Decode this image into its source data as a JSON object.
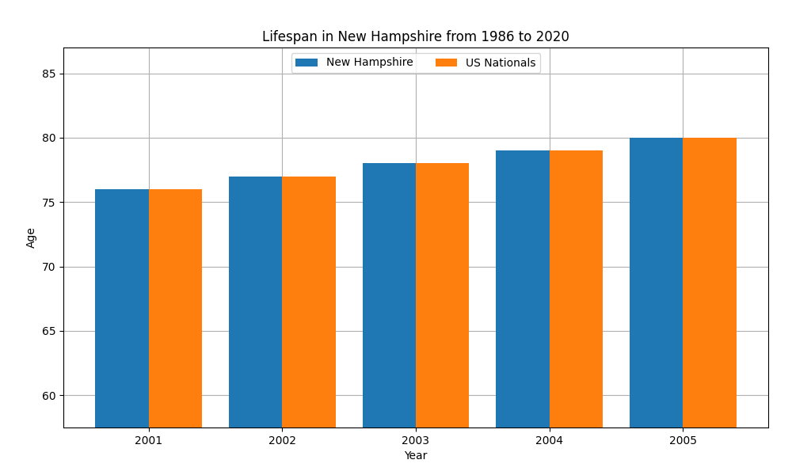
{
  "chart_data": {
    "type": "bar",
    "title": "Lifespan in New Hampshire from 1986 to 2020",
    "x_label": "Year",
    "y_label": "Age",
    "categories": [
      "2001",
      "2002",
      "2003",
      "2004",
      "2005"
    ],
    "series": [
      {
        "name": "New Hampshire",
        "values": [
          76,
          77,
          78,
          79,
          80
        ]
      },
      {
        "name": "US Nationals",
        "values": [
          76,
          77,
          78,
          79,
          80
        ]
      }
    ],
    "ylim": [
      57.5,
      87
    ],
    "yticks": [
      60,
      65,
      70,
      75,
      80,
      85
    ],
    "grid": true,
    "legend": "upper center"
  }
}
